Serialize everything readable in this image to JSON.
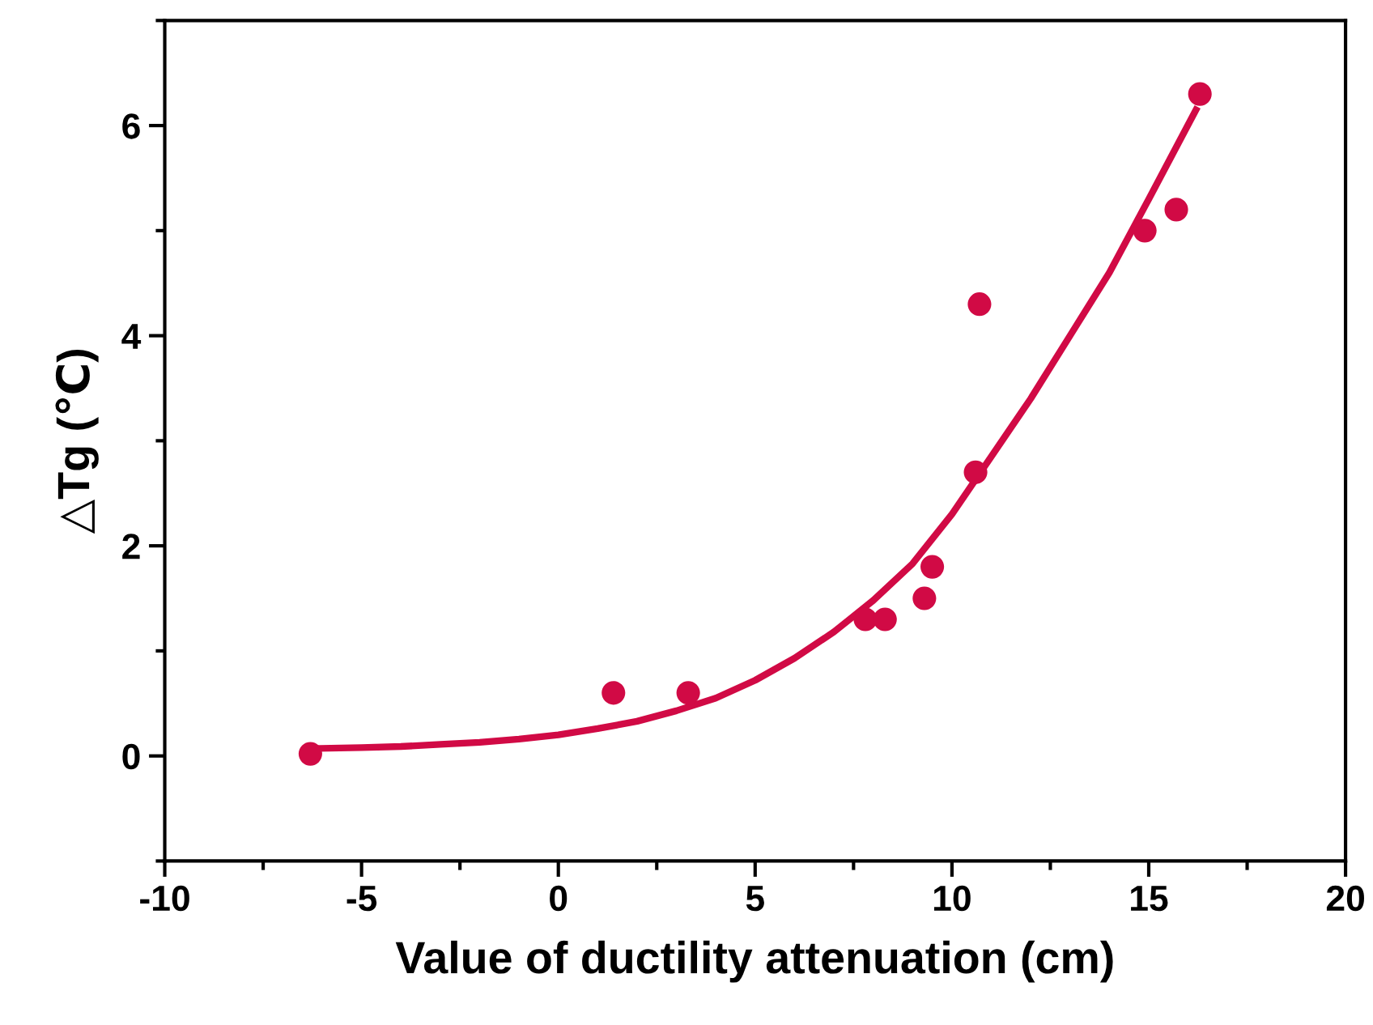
{
  "chart_data": {
    "type": "scatter",
    "xlabel": "Value of ductility attenuation (cm)",
    "ylabel": "△Tg (℃)",
    "xlim": [
      -10,
      20
    ],
    "xticks": [
      -10,
      -5,
      0,
      5,
      10,
      15,
      20
    ],
    "ylim": [
      -1,
      7
    ],
    "yticks": [
      0,
      2,
      4,
      6
    ],
    "grid": false,
    "legend": false,
    "series": [
      {
        "marker": "circle",
        "color": "#d10a45",
        "x": [
          -6.3,
          1.4,
          3.3,
          7.8,
          8.3,
          9.3,
          9.5,
          10.6,
          10.7,
          14.9,
          15.7,
          16.3
        ],
        "values": [
          0.02,
          0.6,
          0.6,
          1.3,
          1.3,
          1.5,
          1.8,
          2.7,
          4.3,
          5.0,
          5.2,
          6.3
        ]
      },
      {
        "type": "line",
        "marker": "none",
        "color": "#d10a45",
        "line_style": "solid",
        "x": [
          -6.3,
          -5,
          -4,
          -3,
          -2,
          -1,
          0,
          1,
          2,
          3,
          4,
          5,
          6,
          7,
          8,
          9,
          10,
          11,
          12,
          13,
          14,
          15,
          16.2
        ],
        "values": [
          0.07,
          0.08,
          0.09,
          0.11,
          0.13,
          0.16,
          0.2,
          0.26,
          0.33,
          0.43,
          0.55,
          0.72,
          0.93,
          1.18,
          1.48,
          1.83,
          2.3,
          2.85,
          3.4,
          4.0,
          4.6,
          5.3,
          6.15
        ]
      }
    ]
  }
}
